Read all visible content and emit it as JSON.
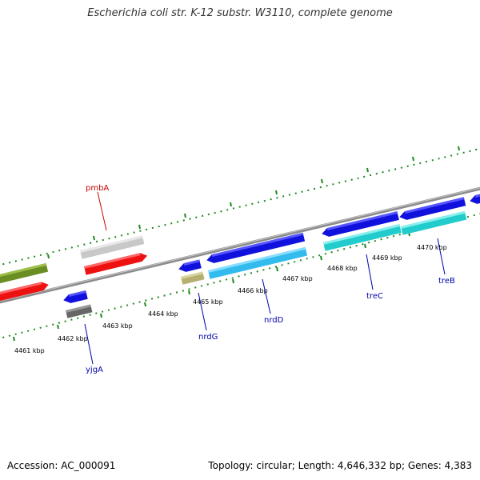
{
  "title": "Escherichia coli str. K-12 substr. W3110, complete genome",
  "footer": {
    "accession": "Accession: AC_000091",
    "summary": "Topology: circular; Length: 4,646,332 bp; Genes: 4,383"
  },
  "colors": {
    "backbone": "#8c8c8c",
    "tick": "#1e8a1e",
    "tick_label": "#000000",
    "gene_label_forward": "#cc0000",
    "gene_label_reverse": "#0000aa"
  },
  "scale_labels": [
    {
      "id": "4461",
      "text": "4461 kbp"
    },
    {
      "id": "4462",
      "text": "4462 kbp"
    },
    {
      "id": "4463",
      "text": "4463 kbp"
    },
    {
      "id": "4464",
      "text": "4464 kbp"
    },
    {
      "id": "4465",
      "text": "4465 kbp"
    },
    {
      "id": "4466",
      "text": "4466 kbp"
    },
    {
      "id": "4467",
      "text": "4467 kbp"
    },
    {
      "id": "4468",
      "text": "4468 kbp"
    },
    {
      "id": "4469",
      "text": "4469 kbp"
    },
    {
      "id": "4470",
      "text": "4470 kbp"
    }
  ],
  "gene_labels": [
    {
      "id": "pmbA",
      "text": "pmbA",
      "strand": "forward"
    },
    {
      "id": "yjgA",
      "text": "yjgA",
      "strand": "reverse"
    },
    {
      "id": "nrdG",
      "text": "nrdG",
      "strand": "reverse"
    },
    {
      "id": "nrdD",
      "text": "nrdD",
      "strand": "reverse"
    },
    {
      "id": "treC",
      "text": "treC",
      "strand": "reverse"
    },
    {
      "id": "treB",
      "text": "treB",
      "strand": "reverse"
    }
  ],
  "features": [
    {
      "id": "olive-left",
      "color": "#6b8e23",
      "strand": "forward"
    },
    {
      "id": "red-left",
      "color": "#ee1111",
      "strand": "forward"
    },
    {
      "id": "pmbA-grey",
      "color": "#c8c8c8",
      "strand": "forward"
    },
    {
      "id": "pmbA-red",
      "color": "#ee1111",
      "strand": "forward"
    },
    {
      "id": "yjgA-blue",
      "color": "#1111dd",
      "strand": "reverse"
    },
    {
      "id": "yjgA-grey",
      "color": "#666666",
      "strand": "reverse"
    },
    {
      "id": "nrdG-blue",
      "color": "#1111dd",
      "strand": "reverse"
    },
    {
      "id": "nrdG-khaki",
      "color": "#b5b070",
      "strand": "reverse"
    },
    {
      "id": "nrdD-blue",
      "color": "#1111dd",
      "strand": "reverse"
    },
    {
      "id": "nrdD-cyan",
      "color": "#33bbee",
      "strand": "reverse"
    },
    {
      "id": "treC-blue",
      "color": "#1111dd",
      "strand": "reverse"
    },
    {
      "id": "treC-teal",
      "color": "#22cccc",
      "strand": "reverse"
    },
    {
      "id": "treB-blue",
      "color": "#1111dd",
      "strand": "reverse"
    },
    {
      "id": "treB-teal",
      "color": "#22cccc",
      "strand": "reverse"
    },
    {
      "id": "right-blue",
      "color": "#1111dd",
      "strand": "reverse"
    }
  ]
}
